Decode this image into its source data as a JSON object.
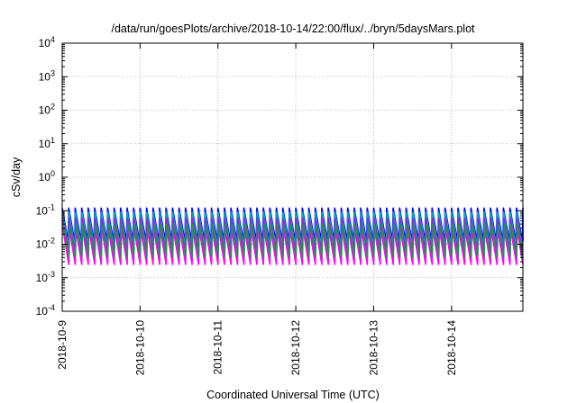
{
  "chart_data": {
    "type": "line",
    "title": "/data/run/goesPlots/archive/2018-10-14/22:00/flux/../bryn/5daysMars.plot",
    "xlabel": "Coordinated Universal Time (UTC)",
    "ylabel": "cSv/day",
    "xlim": [
      "2018-10-09T00:00",
      "2018-10-14T22:00"
    ],
    "ylim": [
      0.0001,
      10000
    ],
    "yscale": "log",
    "grid": true,
    "x_ticks": [
      "2018-10-9",
      "2018-10-10",
      "2018-10-11",
      "2018-10-12",
      "2018-10-13",
      "2018-10-14"
    ],
    "y_ticks": [
      {
        "base": "10",
        "exp": "4"
      },
      {
        "base": "10",
        "exp": "3"
      },
      {
        "base": "10",
        "exp": "2"
      },
      {
        "base": "10",
        "exp": "1"
      },
      {
        "base": "10",
        "exp": "0"
      },
      {
        "base": "10",
        "exp": "-1"
      },
      {
        "base": "10",
        "exp": "-2"
      },
      {
        "base": "10",
        "exp": "-3"
      },
      {
        "base": "10",
        "exp": "-4"
      }
    ],
    "pattern": {
      "description": "sawtooth cycles roughly 12 per day",
      "cycles_per_day": 12,
      "series": [
        {
          "color": "#0000ff",
          "peak": 0.12,
          "trough": 0.012
        },
        {
          "color": "#00b0b0",
          "peak": 0.09,
          "trough": 0.008
        },
        {
          "color": "#8a2be2",
          "peak": 0.06,
          "trough": 0.006
        },
        {
          "color": "#ff00ff",
          "peak": 0.03,
          "trough": 0.0025
        },
        {
          "color": "#2e8b57",
          "peak": 0.04,
          "trough": 0.004
        }
      ]
    }
  }
}
